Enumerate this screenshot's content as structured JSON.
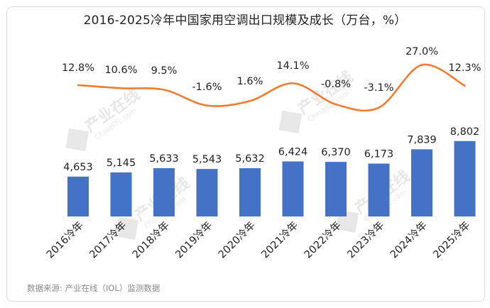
{
  "chart_data": {
    "type": "bar",
    "title": "2016-2025冷年中国家用空调出口规模及成长（万台，%）",
    "categories": [
      "2016冷年",
      "2017冷年",
      "2018冷年",
      "2019冷年",
      "2020冷年",
      "2021冷年",
      "2022冷年",
      "2023冷年",
      "2024冷年",
      "2025冷年"
    ],
    "series": [
      {
        "type": "bar",
        "values": [
          4653,
          5145,
          5633,
          5543,
          5632,
          6424,
          6370,
          6173,
          7839,
          8802
        ],
        "value_labels": [
          "4,653",
          "5,145",
          "5,633",
          "5,543",
          "5,632",
          "6,424",
          "6,370",
          "6,173",
          "7,839",
          "8,802"
        ],
        "color": "#4472c4"
      },
      {
        "type": "line",
        "values": [
          12.8,
          10.6,
          9.5,
          -1.6,
          1.6,
          14.1,
          -0.8,
          -3.1,
          27.0,
          12.3
        ],
        "value_labels": [
          "12.8%",
          "10.6%",
          "9.5%",
          "-1.6%",
          "1.6%",
          "14.1%",
          "-0.8%",
          "-3.1%",
          "27.0%",
          "12.3%"
        ],
        "color": "#ed7d31",
        "smooth": true
      }
    ],
    "legend": "none",
    "grid": false
  },
  "watermark": {
    "cn": "产业在线",
    "en": "ChinaIOL.com"
  },
  "source": "数据来源: 产业在线（IOL）监测数据"
}
